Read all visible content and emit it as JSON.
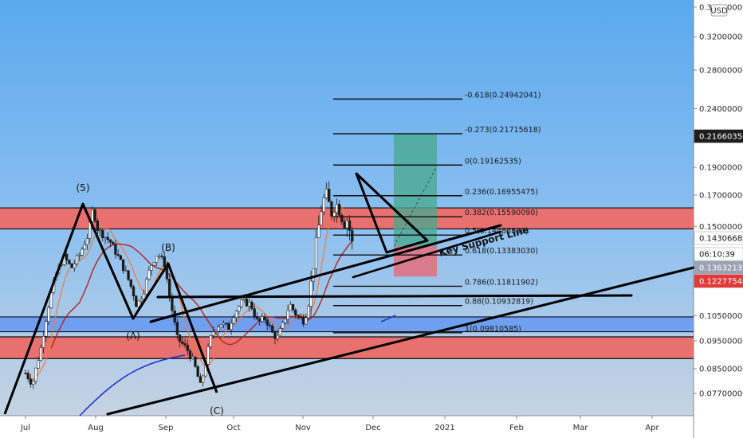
{
  "currency_badge": "USD",
  "chart_data": {
    "type": "candlestick",
    "title": "",
    "xlabel": "",
    "ylabel": "",
    "scale": "log",
    "ylim": [
      0.0725,
      0.365
    ],
    "x_ticks": [
      "Jul",
      "Aug",
      "Sep",
      "Oct",
      "Nov",
      "Dec",
      "2021",
      "Feb",
      "Mar",
      "Apr"
    ],
    "y_ticks": [
      "0.36000000",
      "0.32000000",
      "0.28000000",
      "0.24000000",
      "0.19000000",
      "0.17000000",
      "0.15000000",
      "0.10500000",
      "0.09500000",
      "0.08500000",
      "0.07700000"
    ],
    "price_tags": [
      {
        "label": "0.21660350",
        "value": 0.2166,
        "bg": "#1e1e1e",
        "fg": "#ffffff"
      },
      {
        "label": "0.14306682",
        "value": 0.14307,
        "bg": "#ffffff",
        "fg": "#111111"
      },
      {
        "label": "06:10:39",
        "value": 0.1385,
        "bg": "#ffffff",
        "fg": "#111111"
      },
      {
        "label": "0.13632135",
        "value": 0.13632,
        "bg": "#9aa3b2",
        "fg": "#ffffff"
      },
      {
        "label": "0.12277546",
        "value": 0.12278,
        "bg": "#e03a3a",
        "fg": "#ffffff"
      }
    ],
    "fib_levels": [
      {
        "label": "-0.618(0.24942041)",
        "value": 0.24942
      },
      {
        "label": "-0.273(0.21715618)",
        "value": 0.21716
      },
      {
        "label": "0(0.19162535)",
        "value": 0.19163
      },
      {
        "label": "0.236(0.16955475)",
        "value": 0.16955
      },
      {
        "label": "0.382(0.15590090)",
        "value": 0.1559
      },
      {
        "label": "0.5(0.14486800)",
        "value": 0.14487
      },
      {
        "label": "0.618(0.13383030)",
        "value": 0.13383
      },
      {
        "label": "0.786(0.11811902)",
        "value": 0.11812
      },
      {
        "label": "0.88(0.10932819)",
        "value": 0.10933
      },
      {
        "label": "1(0.09810585)",
        "value": 0.09811
      }
    ],
    "wave_labels": [
      "(5)",
      "(A)",
      "(B)",
      "(C)"
    ],
    "annotation": "Key Support Line",
    "zones": [
      {
        "name": "resistance",
        "from": 0.1485,
        "to": 0.1615,
        "color": "#e8706f"
      },
      {
        "name": "support-blue",
        "from": 0.0985,
        "to": 0.1045,
        "color": "#6f9ff0"
      },
      {
        "name": "support-red",
        "from": 0.0885,
        "to": 0.0965,
        "color": "#e8706f"
      }
    ],
    "trade_box": {
      "entry": 0.1385,
      "target": 0.2166,
      "stop": 0.1228
    }
  }
}
